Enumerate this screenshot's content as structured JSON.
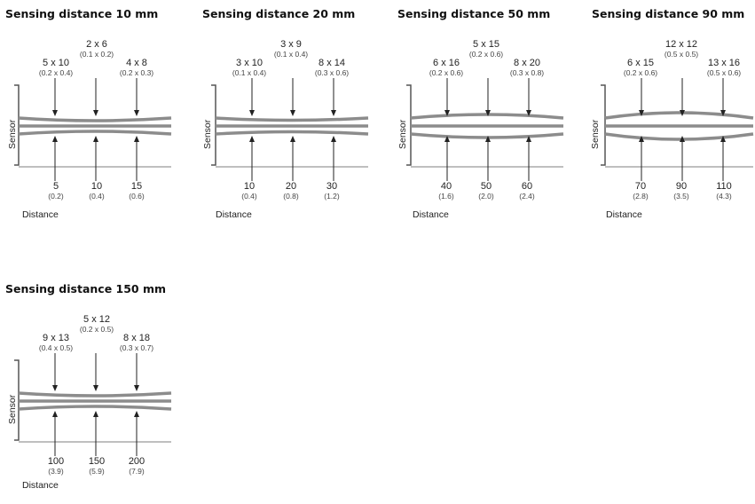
{
  "common": {
    "sensor_label": "Sensor",
    "distance_label": "Distance",
    "beam_color": "#8c8c8c",
    "axis_color": "#555555"
  },
  "panels": [
    {
      "title": "Sensing distance 10 mm",
      "spots": [
        {
          "size": "5 x 10",
          "inch": "(0.2 x 0.4)"
        },
        {
          "size": "2 x 6",
          "inch": "(0.1 x 0.2)"
        },
        {
          "size": "4 x 8",
          "inch": "(0.2 x 0.3)"
        }
      ],
      "distances": [
        {
          "mm": "5",
          "inch": "(0.2)"
        },
        {
          "mm": "10",
          "inch": "(0.4)"
        },
        {
          "mm": "15",
          "inch": "(0.6)"
        }
      ]
    },
    {
      "title": "Sensing distance 20 mm",
      "spots": [
        {
          "size": "3 x 10",
          "inch": "(0.1 x 0.4)"
        },
        {
          "size": "3 x 9",
          "inch": "(0.1 x 0.4)"
        },
        {
          "size": "8 x 14",
          "inch": "(0.3 x 0.6)"
        }
      ],
      "distances": [
        {
          "mm": "10",
          "inch": "(0.4)"
        },
        {
          "mm": "20",
          "inch": "(0.8)"
        },
        {
          "mm": "30",
          "inch": "(1.2)"
        }
      ]
    },
    {
      "title": "Sensing distance 50 mm",
      "spots": [
        {
          "size": "6 x 16",
          "inch": "(0.2 x 0.6)"
        },
        {
          "size": "5 x 15",
          "inch": "(0.2 x 0.6)"
        },
        {
          "size": "8 x 20",
          "inch": "(0.3 x 0.8)"
        }
      ],
      "distances": [
        {
          "mm": "40",
          "inch": "(1.6)"
        },
        {
          "mm": "50",
          "inch": "(2.0)"
        },
        {
          "mm": "60",
          "inch": "(2.4)"
        }
      ]
    },
    {
      "title": "Sensing distance 90 mm",
      "spots": [
        {
          "size": "6 x 15",
          "inch": "(0.2 x 0.6)"
        },
        {
          "size": "12 x 12",
          "inch": "(0.5 x 0.5)"
        },
        {
          "size": "13 x 16",
          "inch": "(0.5 x 0.6)"
        }
      ],
      "distances": [
        {
          "mm": "70",
          "inch": "(2.8)"
        },
        {
          "mm": "90",
          "inch": "(3.5)"
        },
        {
          "mm": "110",
          "inch": "(4.3)"
        }
      ]
    },
    {
      "title": "Sensing distance 150 mm",
      "spots": [
        {
          "size": "9 x 13",
          "inch": "(0.4 x 0.5)"
        },
        {
          "size": "5 x 12",
          "inch": "(0.2 x 0.5)"
        },
        {
          "size": "8 x 18",
          "inch": "(0.3 x 0.7)"
        }
      ],
      "distances": [
        {
          "mm": "100",
          "inch": "(3.9)"
        },
        {
          "mm": "150",
          "inch": "(5.9)"
        },
        {
          "mm": "200",
          "inch": "(7.9)"
        }
      ]
    }
  ]
}
